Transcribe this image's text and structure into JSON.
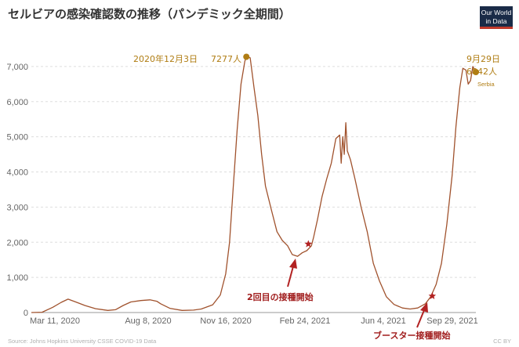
{
  "title": "セルビアの感染確認数の推移（パンデミック全期間）",
  "logo": {
    "line1": "Our World",
    "line2": "in Data",
    "bg_color": "#1a2b47",
    "accent_color": "#c0392b"
  },
  "source": "Source: Johns Hopkins University CSSE COVID-19 Data",
  "license": "CC BY",
  "colors": {
    "line": "#a0522d",
    "peak_marker": "#b07d13",
    "annotation_text": "#b07d13",
    "event_marker": "#b22222",
    "event_text": "#a01c1c",
    "grid": "#dddddd"
  },
  "annotations": {
    "peak": {
      "date_label": "2020年12月3日",
      "value_label": "7277人"
    },
    "latest": {
      "date_label": "9月29日",
      "value_label": "6842人",
      "series_label": "Serbia"
    },
    "second_dose": {
      "label": "2回目の接種開始"
    },
    "booster": {
      "label": "ブースター接種開始"
    }
  },
  "chart_data": {
    "type": "line",
    "x_labels": [
      "Mar 11, 2020",
      "Aug 8, 2020",
      "Nov 16, 2020",
      "Feb 24, 2021",
      "Jun 4, 2021",
      "Sep 29, 2021"
    ],
    "x_range": [
      "2020-02-26",
      "2021-09-29"
    ],
    "y_ticks": [
      "0",
      "1,000",
      "2,000",
      "3,000",
      "4,000",
      "5,000",
      "6,000",
      "7,000"
    ],
    "ylim": [
      0,
      7600
    ],
    "grid": "horizontal dashed",
    "series": [
      {
        "name": "Serbia",
        "points": [
          [
            "2020-02-26",
            0
          ],
          [
            "2020-03-11",
            10
          ],
          [
            "2020-03-25",
            150
          ],
          [
            "2020-04-05",
            290
          ],
          [
            "2020-04-14",
            380
          ],
          [
            "2020-04-24",
            300
          ],
          [
            "2020-05-06",
            200
          ],
          [
            "2020-05-20",
            110
          ],
          [
            "2020-06-05",
            60
          ],
          [
            "2020-06-15",
            80
          ],
          [
            "2020-06-25",
            200
          ],
          [
            "2020-07-05",
            300
          ],
          [
            "2020-07-18",
            340
          ],
          [
            "2020-07-30",
            360
          ],
          [
            "2020-08-08",
            320
          ],
          [
            "2020-08-13",
            250
          ],
          [
            "2020-08-25",
            120
          ],
          [
            "2020-09-10",
            60
          ],
          [
            "2020-09-25",
            70
          ],
          [
            "2020-10-05",
            100
          ],
          [
            "2020-10-20",
            220
          ],
          [
            "2020-10-30",
            500
          ],
          [
            "2020-11-06",
            1100
          ],
          [
            "2020-11-11",
            2000
          ],
          [
            "2020-11-16",
            3600
          ],
          [
            "2020-11-21",
            5200
          ],
          [
            "2020-11-26",
            6500
          ],
          [
            "2020-12-01",
            7150
          ],
          [
            "2020-12-03",
            7277
          ],
          [
            "2020-12-08",
            7250
          ],
          [
            "2020-12-13",
            6400
          ],
          [
            "2020-12-18",
            5600
          ],
          [
            "2020-12-23",
            4500
          ],
          [
            "2020-12-28",
            3600
          ],
          [
            "2021-01-05",
            2900
          ],
          [
            "2021-01-12",
            2300
          ],
          [
            "2021-01-19",
            2050
          ],
          [
            "2021-01-26",
            1900
          ],
          [
            "2021-02-01",
            1650
          ],
          [
            "2021-02-08",
            1600
          ],
          [
            "2021-02-14",
            1700
          ],
          [
            "2021-02-20",
            1760
          ],
          [
            "2021-02-26",
            1900
          ],
          [
            "2021-03-01",
            2150
          ],
          [
            "2021-03-06",
            2650
          ],
          [
            "2021-03-12",
            3300
          ],
          [
            "2021-03-18",
            3800
          ],
          [
            "2021-03-24",
            4250
          ],
          [
            "2021-03-30",
            4950
          ],
          [
            "2021-04-04",
            5050
          ],
          [
            "2021-04-06",
            4250
          ],
          [
            "2021-04-08",
            5000
          ],
          [
            "2021-04-10",
            4500
          ],
          [
            "2021-04-12",
            5400
          ],
          [
            "2021-04-14",
            4600
          ],
          [
            "2021-04-18",
            4350
          ],
          [
            "2021-04-24",
            3800
          ],
          [
            "2021-05-02",
            3000
          ],
          [
            "2021-05-10",
            2300
          ],
          [
            "2021-05-18",
            1400
          ],
          [
            "2021-05-26",
            900
          ],
          [
            "2021-06-04",
            450
          ],
          [
            "2021-06-14",
            230
          ],
          [
            "2021-06-25",
            130
          ],
          [
            "2021-07-05",
            100
          ],
          [
            "2021-07-15",
            130
          ],
          [
            "2021-07-25",
            250
          ],
          [
            "2021-08-01",
            450
          ],
          [
            "2021-08-08",
            800
          ],
          [
            "2021-08-15",
            1400
          ],
          [
            "2021-08-22",
            2500
          ],
          [
            "2021-08-29",
            3900
          ],
          [
            "2021-09-03",
            5300
          ],
          [
            "2021-09-08",
            6400
          ],
          [
            "2021-09-12",
            6950
          ],
          [
            "2021-09-16",
            6900
          ],
          [
            "2021-09-19",
            6500
          ],
          [
            "2021-09-22",
            6600
          ],
          [
            "2021-09-25",
            7000
          ],
          [
            "2021-09-29",
            6842
          ]
        ]
      }
    ],
    "markers": [
      {
        "date": "2020-12-03",
        "value": 7277,
        "kind": "peak"
      },
      {
        "date": "2021-09-29",
        "value": 6842,
        "kind": "latest"
      },
      {
        "date": "2021-02-22",
        "value": 1950,
        "kind": "second_dose"
      },
      {
        "date": "2021-08-03",
        "value": 470,
        "kind": "booster"
      }
    ]
  }
}
